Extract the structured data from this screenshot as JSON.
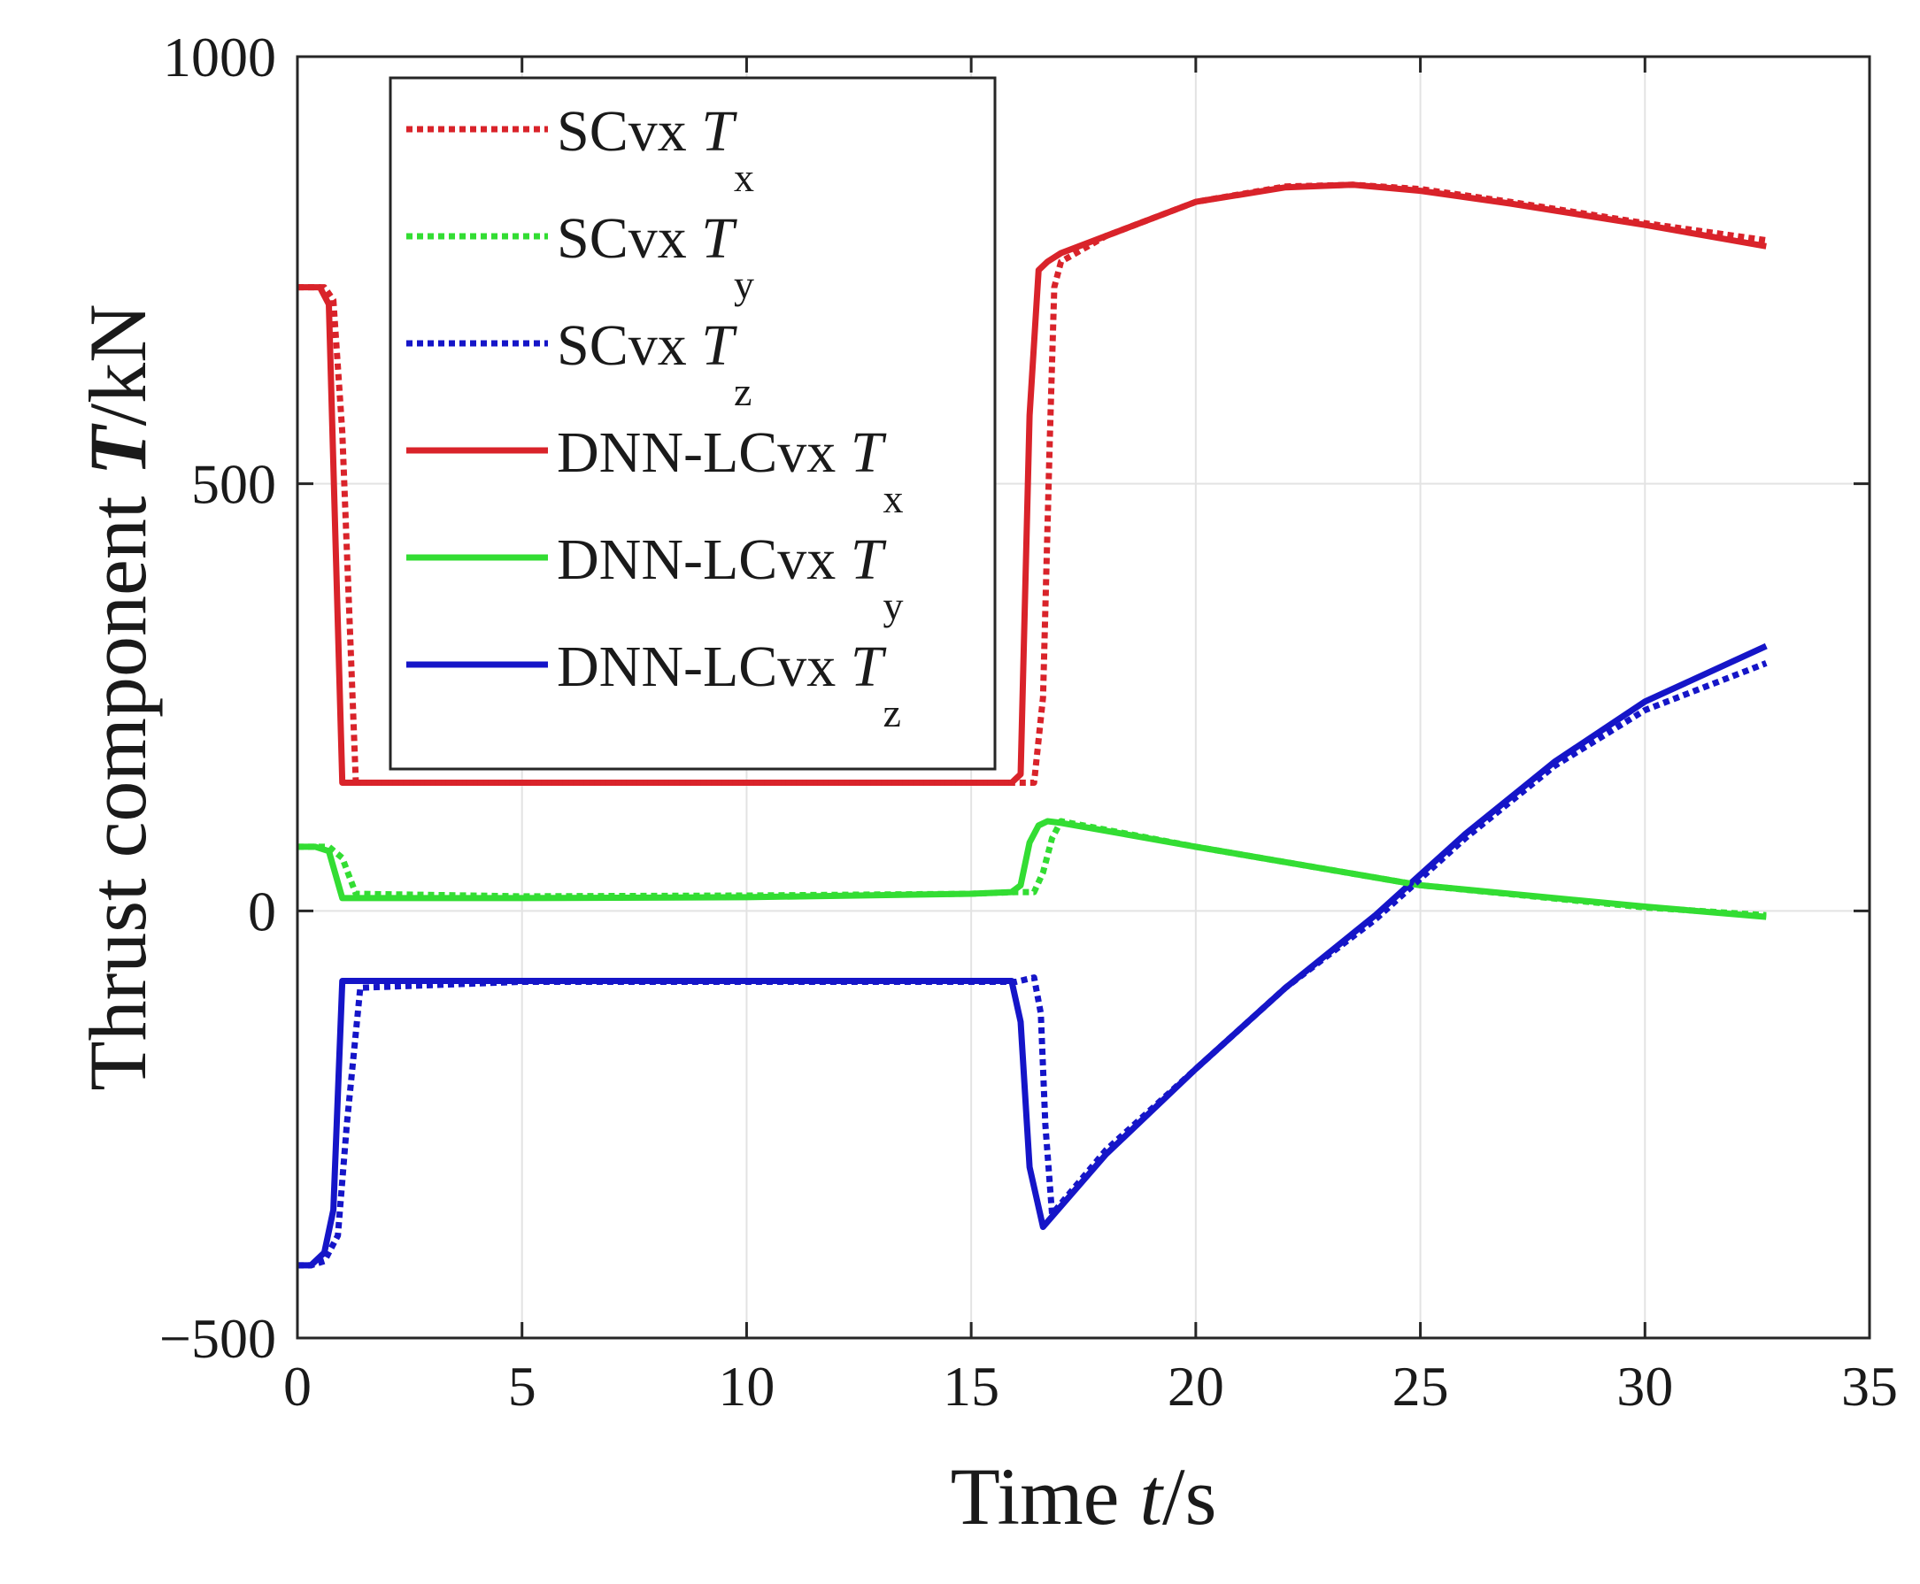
{
  "chart_data": {
    "type": "line",
    "xlabel": {
      "prefix": "Time ",
      "var": "t",
      "unit": "/s"
    },
    "ylabel": {
      "prefix": "Thrust component ",
      "var": "T",
      "unit": "/kN"
    },
    "xlim": [
      0,
      35
    ],
    "ylim": [
      -500,
      1000
    ],
    "xticks": [
      0,
      5,
      10,
      15,
      20,
      25,
      30,
      35
    ],
    "yticks": [
      -500,
      0,
      500,
      1000
    ],
    "xtick_labels": [
      "0",
      "5",
      "10",
      "15",
      "20",
      "25",
      "30",
      "35"
    ],
    "ytick_labels": [
      "−500",
      "0",
      "500",
      "1000"
    ],
    "grid": true,
    "legend_position": "top-left",
    "series": [
      {
        "name": "SCvx T_x",
        "label_main": "SCvx ",
        "label_var": "T",
        "label_sub": "x",
        "color": "#d9232a",
        "style": "dotted",
        "x": [
          0,
          0.3,
          0.6,
          0.8,
          1.0,
          1.3,
          5,
          10,
          15,
          16.0,
          16.4,
          16.6,
          16.75,
          16.85,
          17.0,
          18,
          20,
          22,
          23.5,
          25,
          27,
          30,
          32.7
        ],
        "y": [
          730,
          730,
          730,
          715,
          560,
          150,
          150,
          150,
          150,
          150,
          150,
          250,
          550,
          730,
          760,
          790,
          830,
          848,
          850,
          845,
          830,
          805,
          785
        ]
      },
      {
        "name": "SCvx T_y",
        "label_main": "SCvx ",
        "label_var": "T",
        "label_sub": "y",
        "color": "#33dd33",
        "style": "dotted",
        "x": [
          0,
          0.3,
          0.7,
          1.0,
          1.3,
          5,
          10,
          15,
          16.0,
          16.4,
          16.6,
          16.8,
          17.0,
          20,
          25,
          30,
          32.7
        ],
        "y": [
          75,
          75,
          75,
          62,
          20,
          17,
          18,
          20,
          22,
          22,
          45,
          85,
          105,
          75,
          30,
          4,
          -5
        ]
      },
      {
        "name": "SCvx T_z",
        "label_main": "SCvx ",
        "label_var": "T",
        "label_sub": "z",
        "color": "#1515c8",
        "style": "dotted",
        "x": [
          0,
          0.3,
          0.6,
          0.9,
          1.1,
          1.4,
          5,
          10,
          15,
          16.0,
          16.4,
          16.55,
          16.65,
          16.8,
          18,
          20,
          22,
          24,
          26,
          28,
          30,
          32.7
        ],
        "y": [
          -415,
          -415,
          -410,
          -380,
          -250,
          -90,
          -83,
          -83,
          -83,
          -83,
          -78,
          -120,
          -250,
          -355,
          -280,
          -185,
          -90,
          -10,
          85,
          170,
          235,
          290
        ]
      },
      {
        "name": "DNN-LCvx T_x",
        "label_main": "DNN-LCvx ",
        "label_var": "T",
        "label_sub": "x",
        "color": "#d9232a",
        "style": "solid",
        "x": [
          0,
          0.3,
          0.5,
          0.7,
          1.0,
          5,
          10,
          15,
          15.9,
          16.1,
          16.3,
          16.5,
          16.7,
          17.0,
          18,
          20,
          22,
          23.5,
          25,
          27,
          30,
          32.7
        ],
        "y": [
          730,
          730,
          730,
          710,
          150,
          150,
          150,
          150,
          150,
          160,
          580,
          750,
          760,
          770,
          790,
          830,
          847,
          850,
          843,
          828,
          803,
          778
        ]
      },
      {
        "name": "DNN-LCvx T_y",
        "label_main": "DNN-LCvx ",
        "label_var": "T",
        "label_sub": "y",
        "color": "#33dd33",
        "style": "solid",
        "x": [
          0,
          0.4,
          0.7,
          1.0,
          5,
          10,
          15,
          15.9,
          16.1,
          16.3,
          16.5,
          16.7,
          17.0,
          20,
          25,
          30,
          32.7
        ],
        "y": [
          75,
          75,
          70,
          15,
          15,
          16,
          20,
          22,
          30,
          80,
          100,
          105,
          103,
          75,
          30,
          5,
          -7
        ]
      },
      {
        "name": "DNN-LCvx T_z",
        "label_main": "DNN-LCvx ",
        "label_var": "T",
        "label_sub": "z",
        "color": "#1515c8",
        "style": "solid",
        "x": [
          0,
          0.3,
          0.6,
          0.8,
          1.0,
          5,
          10,
          15,
          15.9,
          16.1,
          16.3,
          16.6,
          18,
          20,
          22,
          24,
          26,
          28,
          30,
          32.7
        ],
        "y": [
          -415,
          -415,
          -400,
          -350,
          -82,
          -82,
          -82,
          -82,
          -82,
          -130,
          -300,
          -370,
          -285,
          -185,
          -90,
          -5,
          90,
          175,
          245,
          310
        ]
      }
    ]
  }
}
